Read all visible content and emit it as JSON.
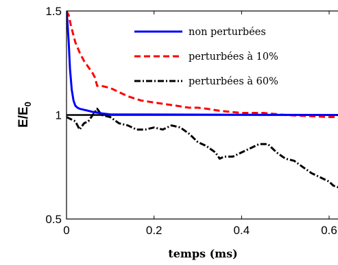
{
  "chart_data": {
    "type": "line",
    "title": "",
    "xlabel": "temps (ms)",
    "ylabel_main": "E/E",
    "ylabel_sub": "0",
    "xlim": [
      0,
      0.625
    ],
    "ylim": [
      0.5,
      1.5
    ],
    "xticks": [
      0,
      0.2,
      0.4,
      0.6
    ],
    "xtick_labels": [
      "0",
      "0.2",
      "0.4",
      "0.6"
    ],
    "yticks": [
      0.5,
      1,
      1.5
    ],
    "ytick_labels": [
      "0.5",
      "1",
      "1.5"
    ],
    "grid": false,
    "legend_position": "top-right",
    "reference_line": {
      "y": 1.0,
      "color": "#000000"
    },
    "series": [
      {
        "name": "non perturbées",
        "color": "#0000ff",
        "style": "solid",
        "x": [
          0.0,
          0.002,
          0.005,
          0.008,
          0.012,
          0.016,
          0.02,
          0.025,
          0.03,
          0.04,
          0.05,
          0.06,
          0.08,
          0.1,
          0.625
        ],
        "y": [
          1.5,
          1.45,
          1.35,
          1.22,
          1.12,
          1.07,
          1.045,
          1.035,
          1.03,
          1.025,
          1.02,
          1.015,
          1.008,
          1.003,
          1.0
        ]
      },
      {
        "name": "perturbées à 10%",
        "color": "#ff0000",
        "style": "dashed",
        "x": [
          0.0,
          0.005,
          0.01,
          0.02,
          0.03,
          0.04,
          0.05,
          0.06,
          0.065,
          0.07,
          0.075,
          0.08,
          0.1,
          0.12,
          0.14,
          0.17,
          0.2,
          0.25,
          0.28,
          0.3,
          0.32,
          0.35,
          0.4,
          0.45,
          0.5,
          0.55,
          0.6,
          0.625
        ],
        "y": [
          1.5,
          1.48,
          1.43,
          1.35,
          1.3,
          1.26,
          1.23,
          1.2,
          1.18,
          1.14,
          1.14,
          1.14,
          1.13,
          1.11,
          1.09,
          1.07,
          1.06,
          1.045,
          1.035,
          1.035,
          1.03,
          1.02,
          1.01,
          1.01,
          1.0,
          0.995,
          0.99,
          0.99
        ]
      },
      {
        "name": "perturbées à 60%",
        "color": "#000000",
        "style": "dashdot",
        "x": [
          0.0,
          0.01,
          0.02,
          0.03,
          0.04,
          0.05,
          0.06,
          0.07,
          0.08,
          0.1,
          0.12,
          0.14,
          0.16,
          0.18,
          0.2,
          0.22,
          0.24,
          0.26,
          0.28,
          0.3,
          0.32,
          0.34,
          0.35,
          0.36,
          0.38,
          0.4,
          0.42,
          0.44,
          0.46,
          0.48,
          0.5,
          0.52,
          0.54,
          0.56,
          0.58,
          0.6,
          0.61,
          0.625
        ],
        "y": [
          0.99,
          0.98,
          0.97,
          0.93,
          0.96,
          0.97,
          1.0,
          1.03,
          1.0,
          0.99,
          0.96,
          0.95,
          0.93,
          0.93,
          0.94,
          0.93,
          0.95,
          0.94,
          0.91,
          0.87,
          0.85,
          0.82,
          0.79,
          0.8,
          0.8,
          0.82,
          0.84,
          0.86,
          0.86,
          0.82,
          0.79,
          0.78,
          0.75,
          0.72,
          0.7,
          0.68,
          0.66,
          0.65
        ]
      }
    ]
  }
}
